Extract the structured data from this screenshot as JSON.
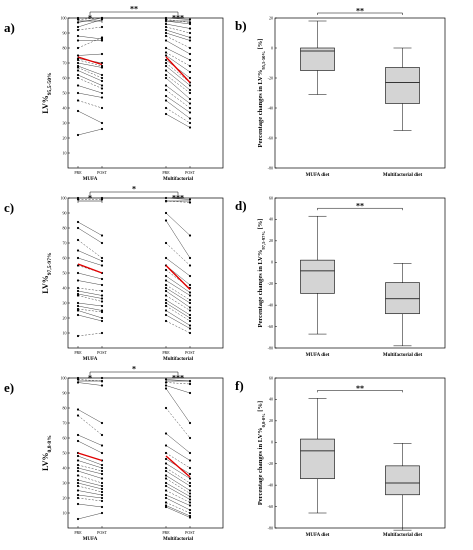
{
  "panel_letters": [
    "a)",
    "b)",
    "c)",
    "d)",
    "e)",
    "f)"
  ],
  "chart_data": [
    {
      "panel": "a)",
      "type": "line",
      "ylabel": "LV%95,5-50%",
      "ylim": [
        0,
        100
      ],
      "yticks": [
        10,
        20,
        30,
        40,
        50,
        60,
        70,
        80,
        90,
        100
      ],
      "tick_labels": [
        "PRE",
        "POST",
        "PRE",
        "POST"
      ],
      "group_labels": [
        "MUFA",
        "Multifactorial"
      ],
      "significance": [
        {
          "between": "mufa-pre-post",
          "label": "*"
        },
        {
          "between": "multi-pre-post",
          "label": "***"
        },
        {
          "between": "mufa-vs-multi",
          "label": "**"
        }
      ],
      "mufa_pairs": [
        [
          100,
          100
        ],
        [
          99,
          100
        ],
        [
          97,
          100
        ],
        [
          94,
          99
        ],
        [
          92,
          94
        ],
        [
          88,
          86
        ],
        [
          85,
          85
        ],
        [
          80,
          87
        ],
        [
          75,
          76
        ],
        [
          73,
          70
        ],
        [
          72,
          68
        ],
        [
          70,
          67
        ],
        [
          68,
          62
        ],
        [
          67,
          60
        ],
        [
          65,
          58
        ],
        [
          62,
          55
        ],
        [
          60,
          53
        ],
        [
          55,
          50
        ],
        [
          50,
          47
        ],
        [
          45,
          40
        ],
        [
          38,
          30
        ],
        [
          22,
          26
        ]
      ],
      "mufa_mean": [
        74,
        69
      ],
      "multi_pairs": [
        [
          100,
          99
        ],
        [
          99,
          97
        ],
        [
          98,
          96
        ],
        [
          96,
          93
        ],
        [
          94,
          90
        ],
        [
          92,
          87
        ],
        [
          90,
          85
        ],
        [
          88,
          80
        ],
        [
          85,
          76
        ],
        [
          80,
          72
        ],
        [
          77,
          68
        ],
        [
          75,
          64
        ],
        [
          72,
          60
        ],
        [
          70,
          57
        ],
        [
          68,
          55
        ],
        [
          65,
          52
        ],
        [
          62,
          50
        ],
        [
          60,
          46
        ],
        [
          55,
          43
        ],
        [
          52,
          40
        ],
        [
          48,
          37
        ],
        [
          45,
          33
        ],
        [
          40,
          30
        ],
        [
          36,
          27
        ]
      ],
      "multi_mean": [
        74,
        57
      ]
    },
    {
      "panel": "b)",
      "type": "box",
      "ylabel": "Percentage changes in LV%95,5-50% [%]",
      "ylim": [
        -80,
        20
      ],
      "yticks": [
        20,
        0,
        -20,
        -40,
        -60,
        -80
      ],
      "categories": [
        "MUFA diet",
        "Multifactorial diet"
      ],
      "boxes": [
        {
          "min": -31,
          "q1": -15,
          "median": -2,
          "q3": 0,
          "max": 18
        },
        {
          "min": -55,
          "q1": -37,
          "median": -23,
          "q3": -13,
          "max": 0
        }
      ],
      "significance": "**"
    },
    {
      "panel": "c)",
      "type": "line",
      "ylabel": "LV%97,5-97%",
      "ylim": [
        0,
        100
      ],
      "yticks": [
        10,
        20,
        30,
        40,
        50,
        60,
        70,
        80,
        90,
        100
      ],
      "tick_labels": [
        "PRE",
        "POST",
        "PRE",
        "POST"
      ],
      "group_labels": [
        "MUFA",
        "Multifactorial"
      ],
      "significance": [
        {
          "between": "mufa-pre-post",
          "label": "*"
        },
        {
          "between": "multi-pre-post",
          "label": "***"
        },
        {
          "between": "mufa-vs-multi",
          "label": "*"
        }
      ],
      "mufa_pairs": [
        [
          100,
          100
        ],
        [
          99,
          99
        ],
        [
          84,
          75
        ],
        [
          80,
          70
        ],
        [
          72,
          60
        ],
        [
          65,
          58
        ],
        [
          60,
          55
        ],
        [
          55,
          50
        ],
        [
          50,
          46
        ],
        [
          45,
          42
        ],
        [
          40,
          38
        ],
        [
          38,
          35
        ],
        [
          36,
          33
        ],
        [
          35,
          31
        ],
        [
          30,
          28
        ],
        [
          28,
          25
        ],
        [
          26,
          24
        ],
        [
          25,
          20
        ],
        [
          22,
          18
        ],
        [
          8,
          10
        ]
      ],
      "mufa_mean": [
        56,
        50
      ],
      "multi_pairs": [
        [
          100,
          99
        ],
        [
          98,
          97
        ],
        [
          90,
          75
        ],
        [
          85,
          60
        ],
        [
          70,
          55
        ],
        [
          60,
          48
        ],
        [
          55,
          42
        ],
        [
          52,
          40
        ],
        [
          48,
          37
        ],
        [
          45,
          35
        ],
        [
          42,
          32
        ],
        [
          40,
          30
        ],
        [
          38,
          27
        ],
        [
          35,
          25
        ],
        [
          32,
          22
        ],
        [
          30,
          20
        ],
        [
          28,
          18
        ],
        [
          25,
          15
        ],
        [
          22,
          13
        ],
        [
          18,
          10
        ]
      ],
      "multi_mean": [
        55,
        39
      ]
    },
    {
      "panel": "d)",
      "type": "box",
      "ylabel": "Percentage changes in LV%97,5-97% [%]",
      "ylim": [
        -80,
        60
      ],
      "yticks": [
        60,
        40,
        20,
        0,
        -20,
        -40,
        -60,
        -80
      ],
      "categories": [
        "MUFA diet",
        "Multifactorial diet"
      ],
      "boxes": [
        {
          "min": -67,
          "q1": -29,
          "median": -8,
          "q3": 2,
          "max": 43
        },
        {
          "min": -78,
          "q1": -48,
          "median": -34,
          "q3": -19,
          "max": -1
        }
      ],
      "significance": "**"
    },
    {
      "panel": "e)",
      "type": "line",
      "ylabel": "LV%0,8-8%",
      "ylim": [
        0,
        100
      ],
      "yticks": [
        10,
        20,
        30,
        40,
        50,
        60,
        70,
        80,
        90,
        100
      ],
      "tick_labels": [
        "PRE",
        "POST",
        "PRE",
        "POST"
      ],
      "group_labels": [
        "MUFA",
        "Multifactorial"
      ],
      "significance": [
        {
          "between": "mufa-pre-post",
          "label": "*"
        },
        {
          "between": "multi-pre-post",
          "label": "***"
        },
        {
          "between": "mufa-vs-multi",
          "label": "*"
        }
      ],
      "mufa_pairs": [
        [
          100,
          100
        ],
        [
          99,
          98
        ],
        [
          97,
          95
        ],
        [
          79,
          70
        ],
        [
          75,
          62
        ],
        [
          62,
          55
        ],
        [
          58,
          50
        ],
        [
          50,
          45
        ],
        [
          48,
          42
        ],
        [
          45,
          40
        ],
        [
          42,
          38
        ],
        [
          40,
          36
        ],
        [
          38,
          33
        ],
        [
          35,
          30
        ],
        [
          32,
          28
        ],
        [
          30,
          26
        ],
        [
          28,
          24
        ],
        [
          25,
          22
        ],
        [
          22,
          20
        ],
        [
          20,
          18
        ],
        [
          16,
          14
        ],
        [
          6,
          10
        ]
      ],
      "mufa_mean": [
        50,
        45
      ],
      "multi_pairs": [
        [
          99,
          98
        ],
        [
          97,
          96
        ],
        [
          95,
          90
        ],
        [
          93,
          70
        ],
        [
          80,
          60
        ],
        [
          63,
          50
        ],
        [
          55,
          45
        ],
        [
          50,
          40
        ],
        [
          46,
          36
        ],
        [
          43,
          33
        ],
        [
          40,
          30
        ],
        [
          38,
          28
        ],
        [
          35,
          25
        ],
        [
          33,
          23
        ],
        [
          30,
          21
        ],
        [
          28,
          19
        ],
        [
          25,
          17
        ],
        [
          22,
          15
        ],
        [
          20,
          12
        ],
        [
          17,
          10
        ],
        [
          15,
          8
        ],
        [
          14,
          7
        ]
      ],
      "multi_mean": [
        48,
        34
      ]
    },
    {
      "panel": "f)",
      "type": "box",
      "ylabel": "Percentage changes in LV%0,8-8% [%]",
      "ylim": [
        -80,
        60
      ],
      "yticks": [
        60,
        40,
        20,
        0,
        -20,
        -40,
        -60,
        -80
      ],
      "categories": [
        "MUFA diet",
        "Multifactorial diet"
      ],
      "boxes": [
        {
          "min": -66,
          "q1": -34,
          "median": -8,
          "q3": 3,
          "max": 41
        },
        {
          "min": -82,
          "q1": -49,
          "median": -38,
          "q3": -22,
          "max": -1
        }
      ],
      "significance": "**"
    }
  ]
}
